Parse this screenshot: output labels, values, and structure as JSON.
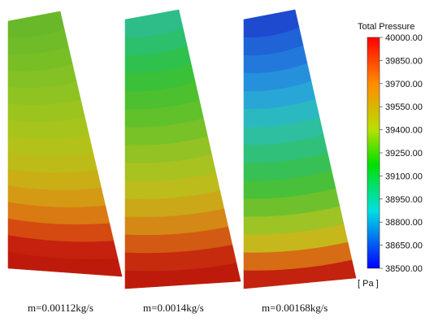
{
  "colorbar": {
    "title": "Total Pressure",
    "unit": "[ Pa ]",
    "min": 38500,
    "max": 40000,
    "labels": [
      "40000.00",
      "39850.00",
      "39700.00",
      "39550.00",
      "39400.00",
      "39250.00",
      "39100.00",
      "38950.00",
      "38800.00",
      "38650.00",
      "38500.00"
    ]
  },
  "panels": [
    {
      "caption": "m=0.00112kg/s",
      "band_colors": [
        "#69b82a",
        "#6fbc28",
        "#78bf26",
        "#84c124",
        "#8ec322",
        "#9bc41f",
        "#a6c41c",
        "#b2c21a",
        "#bdbb18",
        "#c9ae16",
        "#d49a14",
        "#da7a12",
        "#d44a10",
        "#c5210e",
        "#be1a0c"
      ]
    },
    {
      "caption": "m=0.0014kg/s",
      "band_colors": [
        "#2ebd88",
        "#2cbf6c",
        "#30c04e",
        "#3ac039",
        "#4cc02e",
        "#60c12a",
        "#78c126",
        "#92c223",
        "#a8c21f",
        "#bcbc1c",
        "#cba818",
        "#d48916",
        "#d25a12",
        "#c72b0e",
        "#be1a0c"
      ]
    },
    {
      "caption": "m=0.00168kg/s",
      "band_colors": [
        "#1e4ad0",
        "#1f63d6",
        "#2279db",
        "#2590dc",
        "#28a7d6",
        "#2bb9c1",
        "#2dbf9f",
        "#30c07a",
        "#36c056",
        "#48c03a",
        "#6ec12c",
        "#9ec324",
        "#c6b81c",
        "#d66c14",
        "#c3220e"
      ]
    }
  ]
}
